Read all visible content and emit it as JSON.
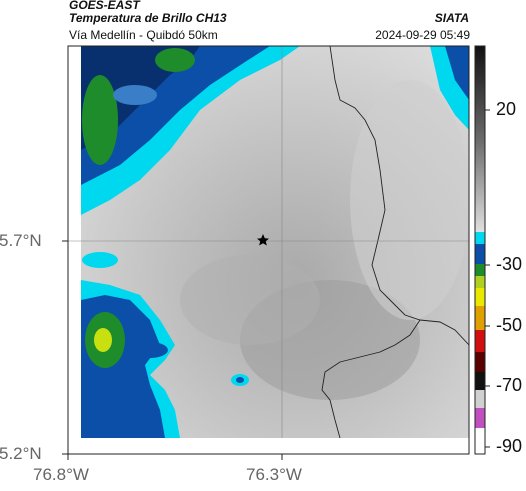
{
  "header": {
    "title": "GOES-EAST",
    "subtitle": "Temperatura de Brillo CH13",
    "region": "Vía Medellín - Quibdó 50km",
    "agency": "SIATA",
    "timestamp": "2024-09-29 05:49"
  },
  "map": {
    "lon_ticks": [
      "76.8°W",
      "76.3°W"
    ],
    "lat_ticks": [
      "5.7°N",
      "5.2°N"
    ],
    "marker_icon": "star-icon"
  },
  "colorbar": {
    "labels": [
      "20",
      "-30",
      "-50",
      "-70",
      "-90"
    ],
    "colors": {
      "warm_top": "#111111",
      "warm_mid": "#9a9a9a",
      "cold_cyan": "#00d8f0",
      "cold_blue": "#0b4fa8",
      "cold_green": "#1e8c2a",
      "cold_yellow": "#e8e800",
      "cold_red": "#d01010",
      "cold_magenta": "#c050c0"
    }
  }
}
